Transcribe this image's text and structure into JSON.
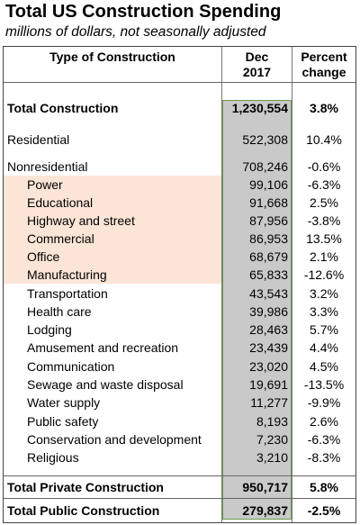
{
  "title": "Total US Construction Spending",
  "subtitle": "millions of dollars, not seasonally adjusted",
  "headers": {
    "type": "Type of Construction",
    "dec_line1": "Dec",
    "dec_line2": "2017",
    "pct_line1": "Percent",
    "pct_line2": "change"
  },
  "rows": [
    {
      "label": "Total Construction",
      "value": "1,230,554",
      "pct": "3.8%"
    },
    {
      "label": "Residential",
      "value": "522,308",
      "pct": "10.4%"
    },
    {
      "label": "Nonresidential",
      "value": "708,246",
      "pct": "-0.6%"
    },
    {
      "label": "Power",
      "value": "99,106",
      "pct": "-6.3%"
    },
    {
      "label": "Educational",
      "value": "91,668",
      "pct": "2.5%"
    },
    {
      "label": "Highway and street",
      "value": "87,956",
      "pct": "-3.8%"
    },
    {
      "label": "Commercial",
      "value": "86,953",
      "pct": "13.5%"
    },
    {
      "label": "Office",
      "value": "68,679",
      "pct": "2.1%"
    },
    {
      "label": "Manufacturing",
      "value": "65,833",
      "pct": "-12.6%"
    },
    {
      "label": "Transportation",
      "value": "43,543",
      "pct": "3.2%"
    },
    {
      "label": "Health care",
      "value": "39,986",
      "pct": "3.3%"
    },
    {
      "label": "Lodging",
      "value": "28,463",
      "pct": "5.7%"
    },
    {
      "label": "Amusement and recreation",
      "value": "23,439",
      "pct": "4.4%"
    },
    {
      "label": "Communication",
      "value": "23,020",
      "pct": "4.5%"
    },
    {
      "label": "Sewage and waste disposal",
      "value": "19,691",
      "pct": "-13.5%"
    },
    {
      "label": "Water supply",
      "value": "11,277",
      "pct": "-9.9%"
    },
    {
      "label": "Public safety",
      "value": "8,193",
      "pct": "2.6%"
    },
    {
      "label": "Conservation and development",
      "value": "7,230",
      "pct": "-6.3%"
    },
    {
      "label": "Religious",
      "value": "3,210",
      "pct": "-8.3%"
    },
    {
      "label": "Total Private Construction",
      "value": "950,717",
      "pct": "5.8%"
    },
    {
      "label": "Total Public Construction",
      "value": "279,837",
      "pct": "-2.5%"
    }
  ],
  "colors": {
    "highlight": "#fbe5d6",
    "column_fill": "#c9c9c9",
    "column_border": "#6c9a4a"
  }
}
